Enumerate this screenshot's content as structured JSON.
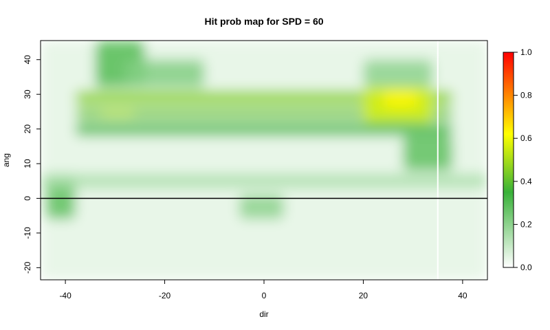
{
  "chart_data": {
    "type": "heatmap",
    "title": "Hit prob map for SPD = 60",
    "xlabel": "dir",
    "ylabel": "ang",
    "xlim": [
      -45,
      45
    ],
    "ylim": [
      -23.5,
      45.5
    ],
    "x_ticks": [
      -40,
      -20,
      0,
      20,
      40
    ],
    "y_ticks": [
      -20,
      -10,
      0,
      10,
      20,
      30,
      40
    ],
    "reference_line": {
      "y": 0,
      "color": "#000000"
    },
    "colorbar": {
      "range": [
        0,
        1
      ],
      "ticks": [
        0.0,
        0.2,
        0.4,
        0.6,
        0.8,
        1.0
      ],
      "tick_labels": [
        "0.0",
        "0.2",
        "0.4",
        "0.6",
        "0.8",
        "1.0"
      ],
      "colors": [
        "#ffffff",
        "#38b138",
        "#ffff00",
        "#ff0000"
      ]
    },
    "regions": [
      {
        "x": [
          -45,
          45
        ],
        "y": [
          -23.5,
          45.5
        ],
        "value": 0.04
      },
      {
        "x": [
          -38,
          38
        ],
        "y": [
          18,
          22
        ],
        "value": 0.3
      },
      {
        "x": [
          -38,
          38
        ],
        "y": [
          23,
          26
        ],
        "value": 0.42
      },
      {
        "x": [
          -38,
          38
        ],
        "y": [
          27,
          31
        ],
        "value": 0.46
      },
      {
        "x": [
          20,
          34
        ],
        "y": [
          22,
          32
        ],
        "value": 0.56
      },
      {
        "x": [
          24,
          31
        ],
        "y": [
          26,
          31
        ],
        "value": 0.63
      },
      {
        "x": [
          -33,
          -26
        ],
        "y": [
          23,
          26
        ],
        "value": 0.5
      },
      {
        "x": [
          -34,
          -24
        ],
        "y": [
          32,
          45.5
        ],
        "value": 0.3
      },
      {
        "x": [
          -44,
          -38
        ],
        "y": [
          -6,
          7
        ],
        "value": 0.28
      },
      {
        "x": [
          -45,
          45
        ],
        "y": [
          3,
          7
        ],
        "value": 0.15
      },
      {
        "x": [
          -5,
          4
        ],
        "y": [
          -6,
          1
        ],
        "value": 0.2
      },
      {
        "x": [
          28,
          38
        ],
        "y": [
          8,
          18
        ],
        "value": 0.28
      },
      {
        "x": [
          -28,
          -12
        ],
        "y": [
          32,
          40
        ],
        "value": 0.22
      },
      {
        "x": [
          20,
          34
        ],
        "y": [
          32,
          40
        ],
        "value": 0.2
      }
    ],
    "vertical_gap": {
      "x": 35,
      "color": "#ffffff"
    }
  }
}
